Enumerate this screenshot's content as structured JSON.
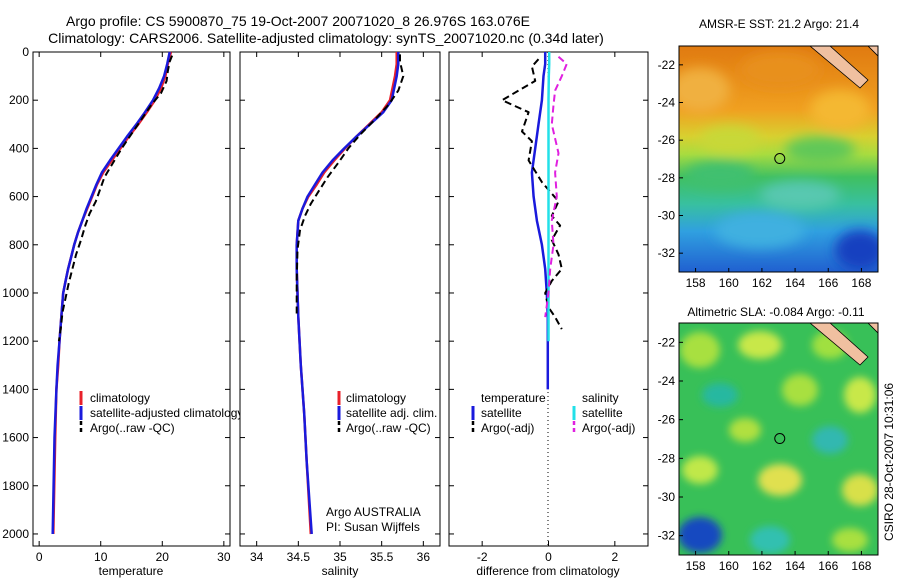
{
  "header": {
    "line1": "Argo profile: CS 5900870_75 19-Oct-2007 20071020_8 26.976S 163.076E",
    "line2": "Climatology: CARS2006. Satellite-adjusted climatology: synTS_20071020.nc (0.34d later)"
  },
  "side_label": "CSIRO 28-Oct-2007 10:31:06",
  "colors": {
    "climatology": "#e8202a",
    "satellite": "#1a1adc",
    "argo": "#000000",
    "sat_salinity": "#22e0e8",
    "argo_salinity": "#e020e0"
  },
  "chart_data": [
    {
      "type": "line",
      "name": "temperature-profile",
      "xlabel": "temperature",
      "xlim": [
        -1,
        31
      ],
      "ylim": [
        0,
        2050
      ],
      "xticks": [
        "0",
        "10",
        "20",
        "30"
      ],
      "xtick_values": [
        0,
        10,
        20,
        30
      ],
      "yticks": [
        "0",
        "200",
        "400",
        "600",
        "800",
        "1000",
        "1200",
        "1400",
        "1600",
        "1800",
        "2000"
      ],
      "ytick_values": [
        0,
        200,
        400,
        600,
        800,
        1000,
        1200,
        1400,
        1600,
        1800,
        2000
      ],
      "legend": [
        "climatology",
        "satellite-adjusted climatology",
        "Argo(..raw -QC)"
      ],
      "series": [
        {
          "name": "climatology",
          "color": "#e8202a",
          "dash": false,
          "x": [
            21.4,
            20.9,
            20.5,
            19.8,
            18.8,
            17.5,
            16.1,
            14.6,
            13.2,
            11.8,
            10.4,
            9.4,
            8.6,
            7.8,
            7.0,
            6.3,
            5.7,
            5.2,
            4.7,
            4.3,
            3.9,
            3.6,
            3.3,
            3.1,
            2.8,
            2.6,
            2.3
          ],
          "y": [
            0,
            50,
            100,
            150,
            200,
            250,
            300,
            350,
            400,
            450,
            500,
            550,
            600,
            650,
            700,
            750,
            800,
            850,
            900,
            950,
            1000,
            1100,
            1200,
            1300,
            1400,
            1600,
            2000
          ]
        },
        {
          "name": "satellite-adjusted climatology",
          "color": "#1a1adc",
          "dash": false,
          "x": [
            21.2,
            20.8,
            20.3,
            19.5,
            18.5,
            17.2,
            15.8,
            14.3,
            12.9,
            11.5,
            10.2,
            9.3,
            8.5,
            7.7,
            7.0,
            6.3,
            5.7,
            5.2,
            4.7,
            4.3,
            3.9,
            3.6,
            3.3,
            3.0,
            2.8,
            2.5,
            2.2
          ],
          "y": [
            0,
            50,
            100,
            150,
            200,
            250,
            300,
            350,
            400,
            450,
            500,
            550,
            600,
            650,
            700,
            750,
            800,
            850,
            900,
            950,
            1000,
            1100,
            1200,
            1300,
            1400,
            1600,
            2000
          ]
        },
        {
          "name": "Argo(..raw -QC)",
          "color": "#000000",
          "dash": true,
          "x": [
            21.6,
            21.2,
            20.9,
            20.7,
            19.8,
            18.2,
            16.6,
            15.0,
            13.4,
            12.0,
            10.6,
            9.9,
            9.2,
            8.2,
            7.5,
            6.8,
            6.0,
            5.4,
            4.8,
            4.3,
            3.8,
            3.5,
            3.2
          ],
          "y": [
            15,
            40,
            80,
            120,
            170,
            220,
            280,
            340,
            400,
            460,
            520,
            570,
            620,
            670,
            720,
            780,
            840,
            900,
            960,
            1020,
            1080,
            1150,
            1200
          ]
        }
      ]
    },
    {
      "type": "line",
      "name": "salinity-profile",
      "xlabel": "salinity",
      "xlim": [
        33.8,
        36.2
      ],
      "ylim": [
        0,
        2050
      ],
      "xticks": [
        "34",
        "34.5",
        "35",
        "35.5",
        "36"
      ],
      "xtick_values": [
        34,
        34.5,
        35,
        35.5,
        36
      ],
      "legend": [
        "climatology",
        "satellite adj. clim.",
        "Argo(..raw -QC)"
      ],
      "annotation": [
        "Argo AUSTRALIA",
        "PI: Susan Wijffels"
      ],
      "series": [
        {
          "name": "climatology",
          "color": "#e8202a",
          "dash": false,
          "x": [
            35.68,
            35.68,
            35.66,
            35.6,
            35.5,
            35.35,
            35.2,
            35.06,
            34.93,
            34.81,
            34.72,
            34.62,
            34.55,
            34.5,
            34.48,
            34.48,
            34.5,
            34.53,
            34.57,
            34.6,
            34.65
          ],
          "y": [
            0,
            50,
            100,
            200,
            250,
            300,
            350,
            400,
            450,
            500,
            550,
            600,
            650,
            700,
            800,
            900,
            1100,
            1300,
            1500,
            1700,
            2000
          ]
        },
        {
          "name": "satellite adj. clim.",
          "color": "#1a1adc",
          "dash": false,
          "x": [
            35.7,
            35.7,
            35.68,
            35.62,
            35.52,
            35.36,
            35.2,
            35.05,
            34.91,
            34.79,
            34.7,
            34.61,
            34.55,
            34.5,
            34.48,
            34.48,
            34.5,
            34.53,
            34.57,
            34.6,
            34.66
          ],
          "y": [
            0,
            50,
            100,
            200,
            250,
            300,
            350,
            400,
            450,
            500,
            550,
            600,
            650,
            700,
            800,
            900,
            1100,
            1300,
            1500,
            1700,
            2000
          ]
        },
        {
          "name": "Argo(..raw -QC)",
          "color": "#000000",
          "dash": true,
          "x": [
            35.72,
            35.72,
            35.76,
            35.7,
            35.58,
            35.42,
            35.25,
            35.1,
            34.98,
            34.85,
            34.74,
            34.65,
            34.58,
            34.52,
            34.49,
            34.48,
            34.48
          ],
          "y": [
            10,
            40,
            100,
            160,
            220,
            280,
            340,
            400,
            460,
            520,
            580,
            630,
            680,
            740,
            820,
            950,
            1100
          ]
        }
      ]
    },
    {
      "type": "line",
      "name": "difference-profile",
      "xlabel": "difference from climatology",
      "xlim": [
        -3.0,
        3.0
      ],
      "ylim": [
        0,
        2050
      ],
      "xticks": [
        "-2",
        "0",
        "2"
      ],
      "xtick_values": [
        -2,
        0,
        2
      ],
      "legend": [
        "temperature",
        "satellite",
        "Argo(-adj)",
        "salinity",
        "satellite",
        "Argo(-adj)"
      ],
      "series": [
        {
          "name": "temperature satellite",
          "color": "#1a1adc",
          "dash": false,
          "x": [
            -0.1,
            -0.1,
            -0.15,
            -0.2,
            -0.3,
            -0.4,
            -0.5,
            -0.45,
            -0.35,
            -0.2,
            -0.1,
            -0.05,
            -0.02,
            -0.02,
            -0.02
          ],
          "y": [
            0,
            50,
            100,
            200,
            300,
            400,
            500,
            600,
            700,
            800,
            900,
            1000,
            1100,
            1250,
            1400
          ]
        },
        {
          "name": "temperature Argo(-adj)",
          "color": "#000000",
          "dash": true,
          "x": [
            -0.3,
            -0.5,
            -0.4,
            -1.4,
            -0.6,
            -0.8,
            -0.5,
            -0.6,
            -0.2,
            0.3,
            0.1,
            0.35,
            0.1,
            0.3,
            0.4,
            0.1,
            -0.1,
            0.0,
            0.2,
            0.4
          ],
          "y": [
            30,
            60,
            120,
            200,
            250,
            330,
            370,
            450,
            540,
            620,
            680,
            720,
            780,
            840,
            900,
            950,
            1000,
            1060,
            1100,
            1150
          ]
        },
        {
          "name": "salinity satellite",
          "color": "#22e0e8",
          "dash": false,
          "x": [
            0.02,
            0.02,
            0.01,
            0.0,
            0.0,
            0.0,
            0.0,
            0.0,
            0.0
          ],
          "y": [
            0,
            50,
            100,
            200,
            400,
            600,
            800,
            1000,
            1200
          ]
        },
        {
          "name": "salinity Argo(-adj)",
          "color": "#e020e0",
          "dash": true,
          "x": [
            0.3,
            0.55,
            0.4,
            0.2,
            0.15,
            0.1,
            0.3,
            0.2,
            0.25,
            0.1,
            0.15,
            0.05,
            0.0,
            -0.1
          ],
          "y": [
            20,
            50,
            100,
            160,
            220,
            300,
            420,
            500,
            600,
            700,
            800,
            900,
            1000,
            1100
          ]
        }
      ]
    },
    {
      "type": "heatmap",
      "name": "sst-map",
      "title": "AMSR-E SST: 21.2 Argo: 21.4",
      "xlim": [
        157,
        169
      ],
      "ylim": [
        -33,
        -21
      ],
      "xticks": [
        "158",
        "160",
        "162",
        "164",
        "166",
        "168"
      ],
      "xtick_values": [
        158,
        160,
        162,
        164,
        166,
        168
      ],
      "yticks": [
        "-22",
        "-24",
        "-26",
        "-28",
        "-30",
        "-32"
      ],
      "ytick_values": [
        -22,
        -24,
        -26,
        -28,
        -30,
        -32
      ],
      "marker": {
        "lon": 163.076,
        "lat": -26.976
      }
    },
    {
      "type": "heatmap",
      "name": "sla-map",
      "title": "Altimetric SLA: -0.084 Argo: -0.11",
      "xlim": [
        157,
        169
      ],
      "ylim": [
        -33,
        -21
      ],
      "xticks": [
        "158",
        "160",
        "162",
        "164",
        "166",
        "168"
      ],
      "xtick_values": [
        158,
        160,
        162,
        164,
        166,
        168
      ],
      "yticks": [
        "-22",
        "-24",
        "-26",
        "-28",
        "-30",
        "-32"
      ],
      "ytick_values": [
        -22,
        -24,
        -26,
        -28,
        -30,
        -32
      ],
      "marker": {
        "lon": 163.076,
        "lat": -26.976
      }
    }
  ]
}
